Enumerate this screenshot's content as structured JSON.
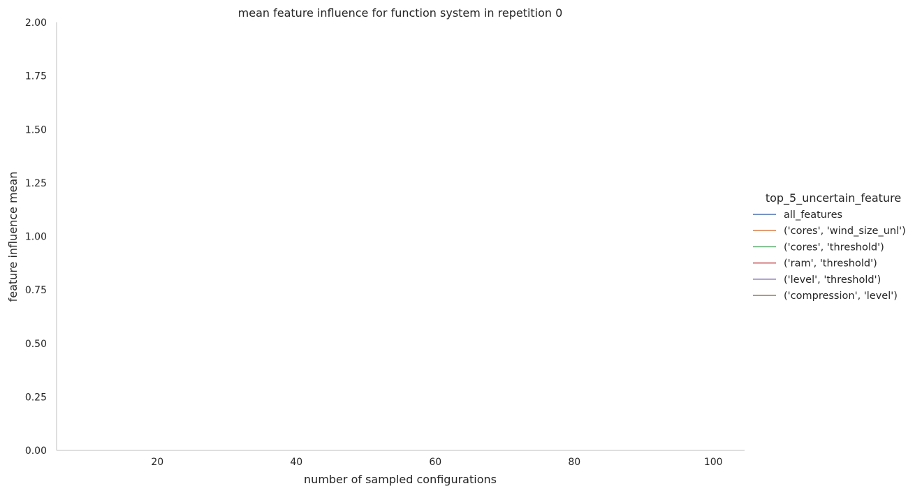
{
  "chart_data": {
    "type": "line",
    "title": "mean feature influence for function system in repetition 0",
    "xlabel": "number of sampled configurations",
    "ylabel": "feature influence mean",
    "xlim": [
      5.5,
      104.5
    ],
    "ylim": [
      0,
      2
    ],
    "x_ticks": [
      20,
      40,
      60,
      80,
      100
    ],
    "x_tick_labels": [
      "20",
      "40",
      "60",
      "80",
      "100"
    ],
    "y_ticks": [
      0,
      0.25,
      0.5,
      0.75,
      1.0,
      1.25,
      1.5,
      1.75,
      2.0
    ],
    "y_tick_labels": [
      "0.00",
      "0.25",
      "0.50",
      "0.75",
      "1.00",
      "1.25",
      "1.50",
      "1.75",
      "2.00"
    ],
    "grid": false,
    "legend_title": "top_5_uncertain_feature",
    "legend_placement": "right",
    "series": [
      {
        "name": "all_features",
        "color": "#4c72b0",
        "x": [],
        "y": []
      },
      {
        "name": "('cores', 'wind_size_unl')",
        "color": "#dd8452",
        "x": [],
        "y": []
      },
      {
        "name": "('cores', 'threshold')",
        "color": "#55a868",
        "x": [],
        "y": []
      },
      {
        "name": "('ram', 'threshold')",
        "color": "#c44e52",
        "x": [],
        "y": []
      },
      {
        "name": "('level', 'threshold')",
        "color": "#8172b3",
        "x": [],
        "y": []
      },
      {
        "name": "('compression', 'level')",
        "color": "#937860",
        "x": [],
        "y": []
      }
    ]
  }
}
